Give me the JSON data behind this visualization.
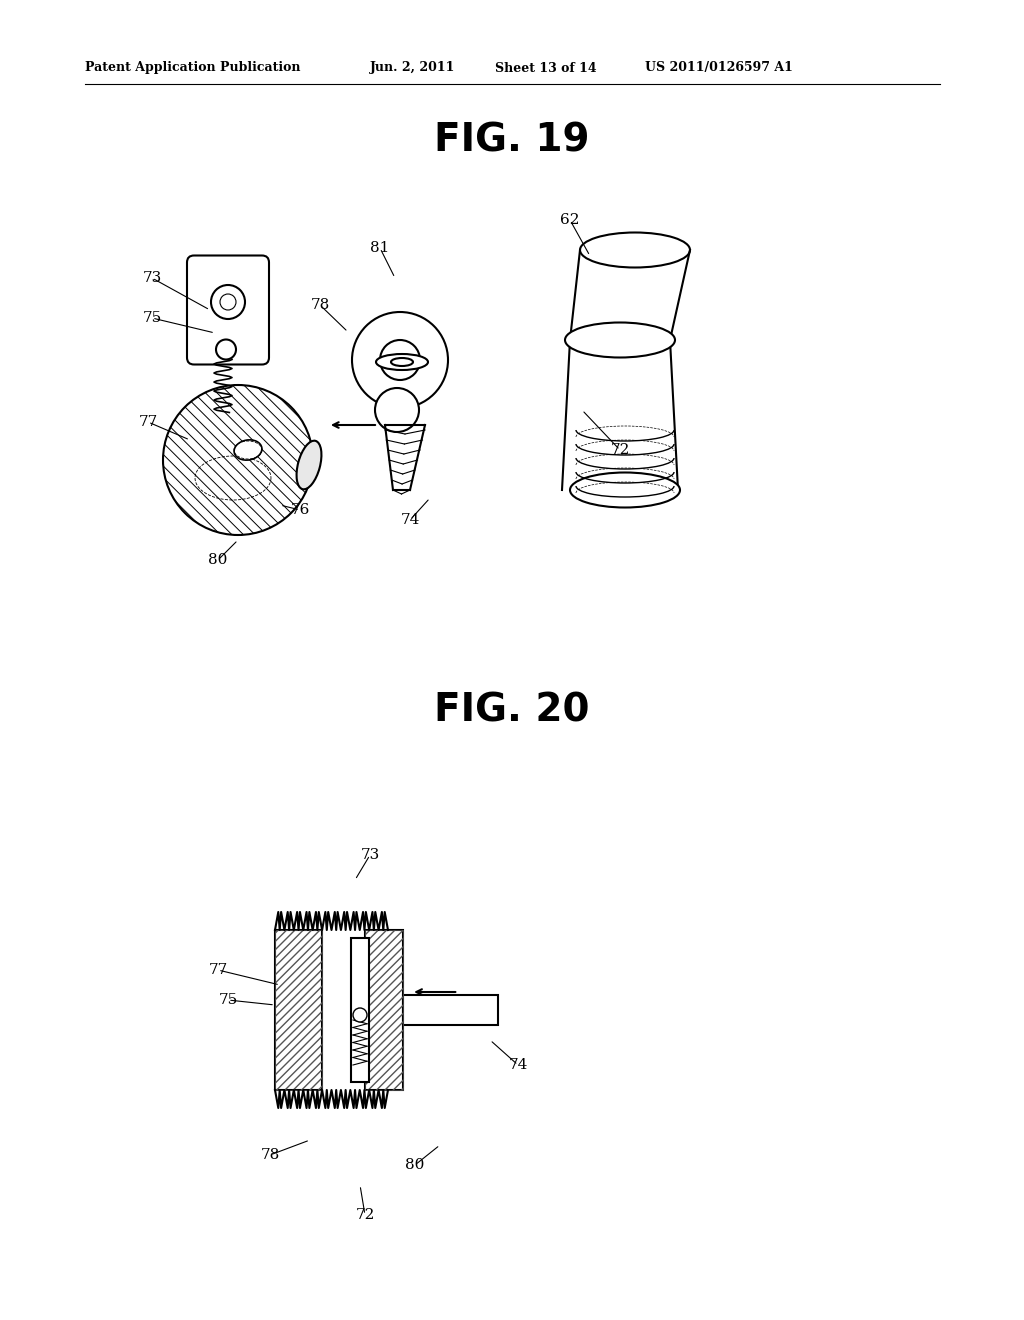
{
  "bg_color": "#ffffff",
  "line_color": "#000000",
  "header_text": "Patent Application Publication",
  "header_date": "Jun. 2, 2011",
  "header_sheet": "Sheet 13 of 14",
  "header_patent": "US 2011/0126597 A1",
  "fig19_title": "FIG. 19",
  "fig20_title": "FIG. 20"
}
